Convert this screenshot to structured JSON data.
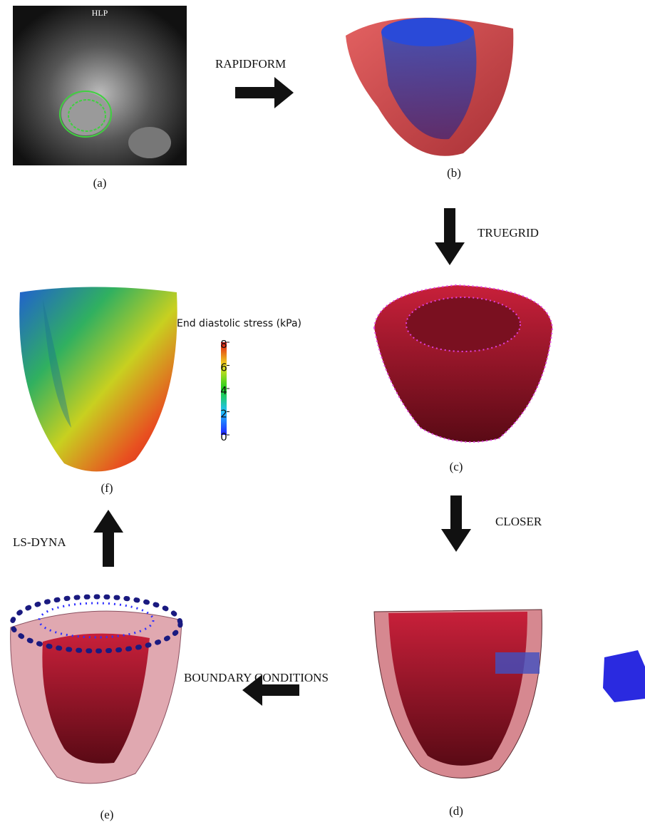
{
  "panels": {
    "a": {
      "label": "(a)",
      "image_text": "HLP"
    },
    "b": {
      "label": "(b)"
    },
    "c": {
      "label": "(c)"
    },
    "d": {
      "label": "(d)"
    },
    "e": {
      "label": "(e)"
    },
    "f": {
      "label": "(f)"
    }
  },
  "steps": {
    "rapidform": "RAPIDFORM",
    "truegrid": "TRUEGRID",
    "closer": "CLOSER",
    "boundary": "BOUNDARY CONDITIONS",
    "lsdyna": "LS-DYNA"
  },
  "colorbar": {
    "title": "End diastolic stress (kPa)",
    "ticks": [
      8,
      6,
      4,
      2,
      0
    ]
  }
}
